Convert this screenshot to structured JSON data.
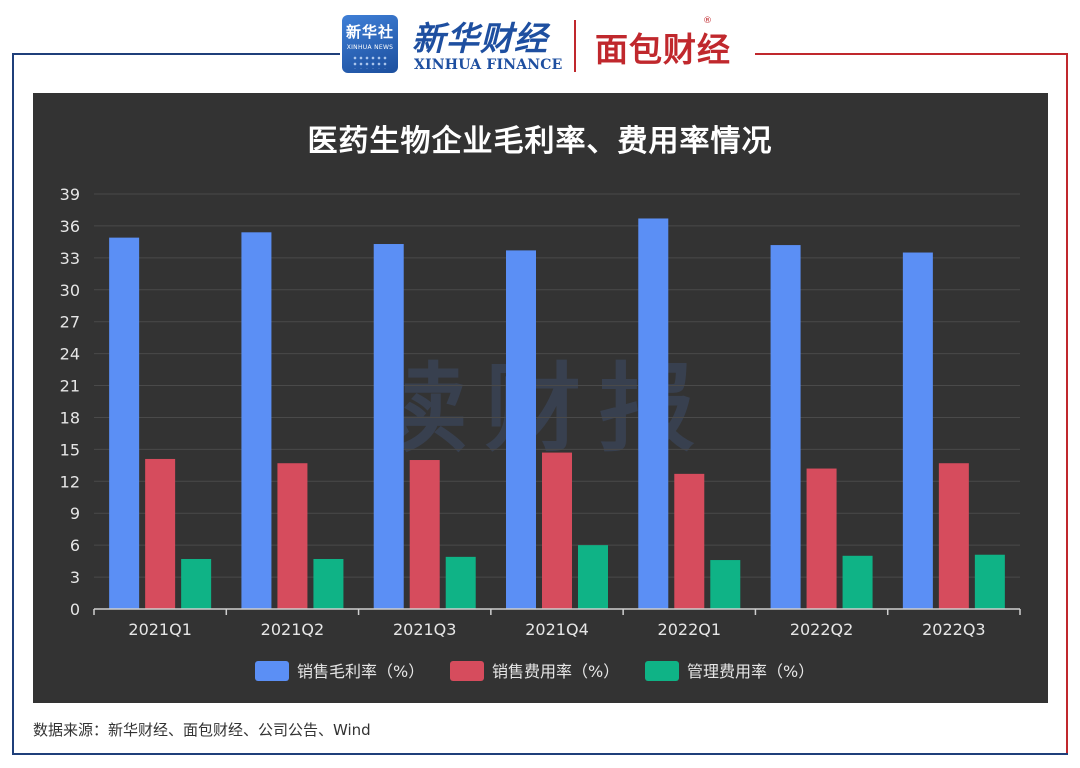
{
  "header": {
    "badge_name": "新华社",
    "badge_en": "XINHUA NEWS",
    "brand_cn": "新华财经",
    "brand_en": "XINHUA FINANCE",
    "partner_brand": "面包财经",
    "registered_mark": "®"
  },
  "watermark": "读财报",
  "source_note": "数据来源：新华财经、面包财经、公司公告、Wind",
  "colors": {
    "background": "#333333",
    "series": [
      "#5b8ff5",
      "#d64c5d",
      "#0fb386"
    ],
    "frame_left": "#1f3f7a",
    "frame_right": "#c0282d"
  },
  "chart_data": {
    "type": "bar",
    "title": "医药生物企业毛利率、费用率情况",
    "xlabel": "",
    "ylabel": "",
    "categories": [
      "2021Q1",
      "2021Q2",
      "2021Q3",
      "2021Q4",
      "2022Q1",
      "2022Q2",
      "2022Q3"
    ],
    "series": [
      {
        "name": "销售毛利率（%）",
        "values": [
          34.9,
          35.4,
          34.3,
          33.7,
          36.7,
          34.2,
          33.5
        ]
      },
      {
        "name": "销售费用率（%）",
        "values": [
          14.1,
          13.7,
          14.0,
          14.7,
          12.7,
          13.2,
          13.7
        ]
      },
      {
        "name": "管理费用率（%）",
        "values": [
          4.7,
          4.7,
          4.9,
          6.0,
          4.6,
          5.0,
          5.1
        ]
      }
    ],
    "ylim": [
      0,
      39
    ],
    "yticks": [
      0,
      3,
      6,
      9,
      12,
      15,
      18,
      21,
      24,
      27,
      30,
      33,
      36,
      39
    ],
    "grid": true,
    "legend_position": "bottom"
  }
}
